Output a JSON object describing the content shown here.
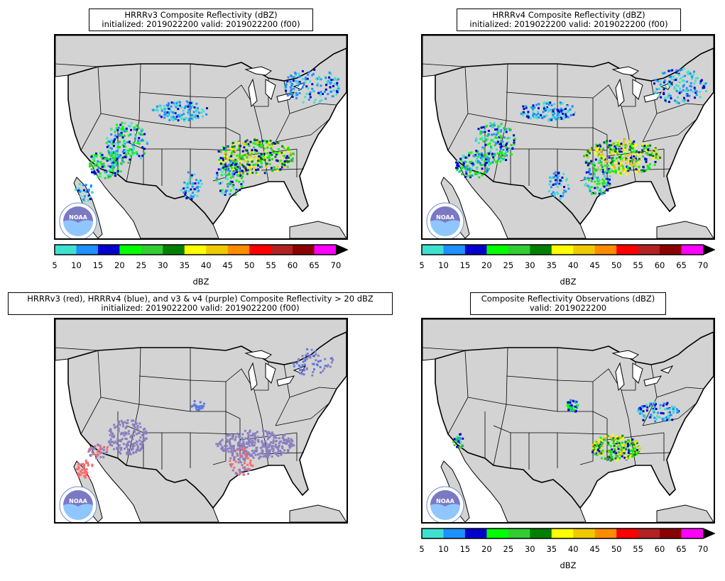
{
  "panels": [
    {
      "title_line1": "HRRRv3 Composite Reflectivity (dBZ)",
      "title_line2": "initialized: 2019022200 valid: 2019022200 (f00)",
      "has_colorbar": true
    },
    {
      "title_line1": "HRRRv4 Composite Reflectivity (dBZ)",
      "title_line2": "initialized: 2019022200 valid: 2019022200 (f00)",
      "has_colorbar": true
    },
    {
      "title_line1": "HRRRv3 (red), HRRRv4 (blue), and v3 & v4 (purple) Composite Reflectivity > 20 dBZ",
      "title_line2": "initialized: 2019022200 valid: 2019022200 (f00)",
      "has_colorbar": false
    },
    {
      "title_line1": "Composite Reflectivity Observations (dBZ)",
      "title_line2": "valid: 2019022200",
      "has_colorbar": true
    }
  ],
  "colorbar": {
    "label": "dBZ",
    "ticks": [
      "5",
      "10",
      "15",
      "20",
      "25",
      "30",
      "35",
      "40",
      "45",
      "50",
      "55",
      "60",
      "65",
      "70"
    ],
    "colors": [
      "#40e0d0",
      "#1e90ff",
      "#0000cd",
      "#00ff00",
      "#32cd32",
      "#008000",
      "#ffff00",
      "#eec900",
      "#ff8c00",
      "#ff0000",
      "#b22222",
      "#8b0000",
      "#ff00ff"
    ]
  },
  "logo": {
    "text": "NOAA"
  },
  "colors": {
    "land": "#d3d3d3",
    "water": "#ffffff",
    "v3": "#ff6a6a",
    "v4": "#5a78e0",
    "both": "#8a7fc0"
  }
}
